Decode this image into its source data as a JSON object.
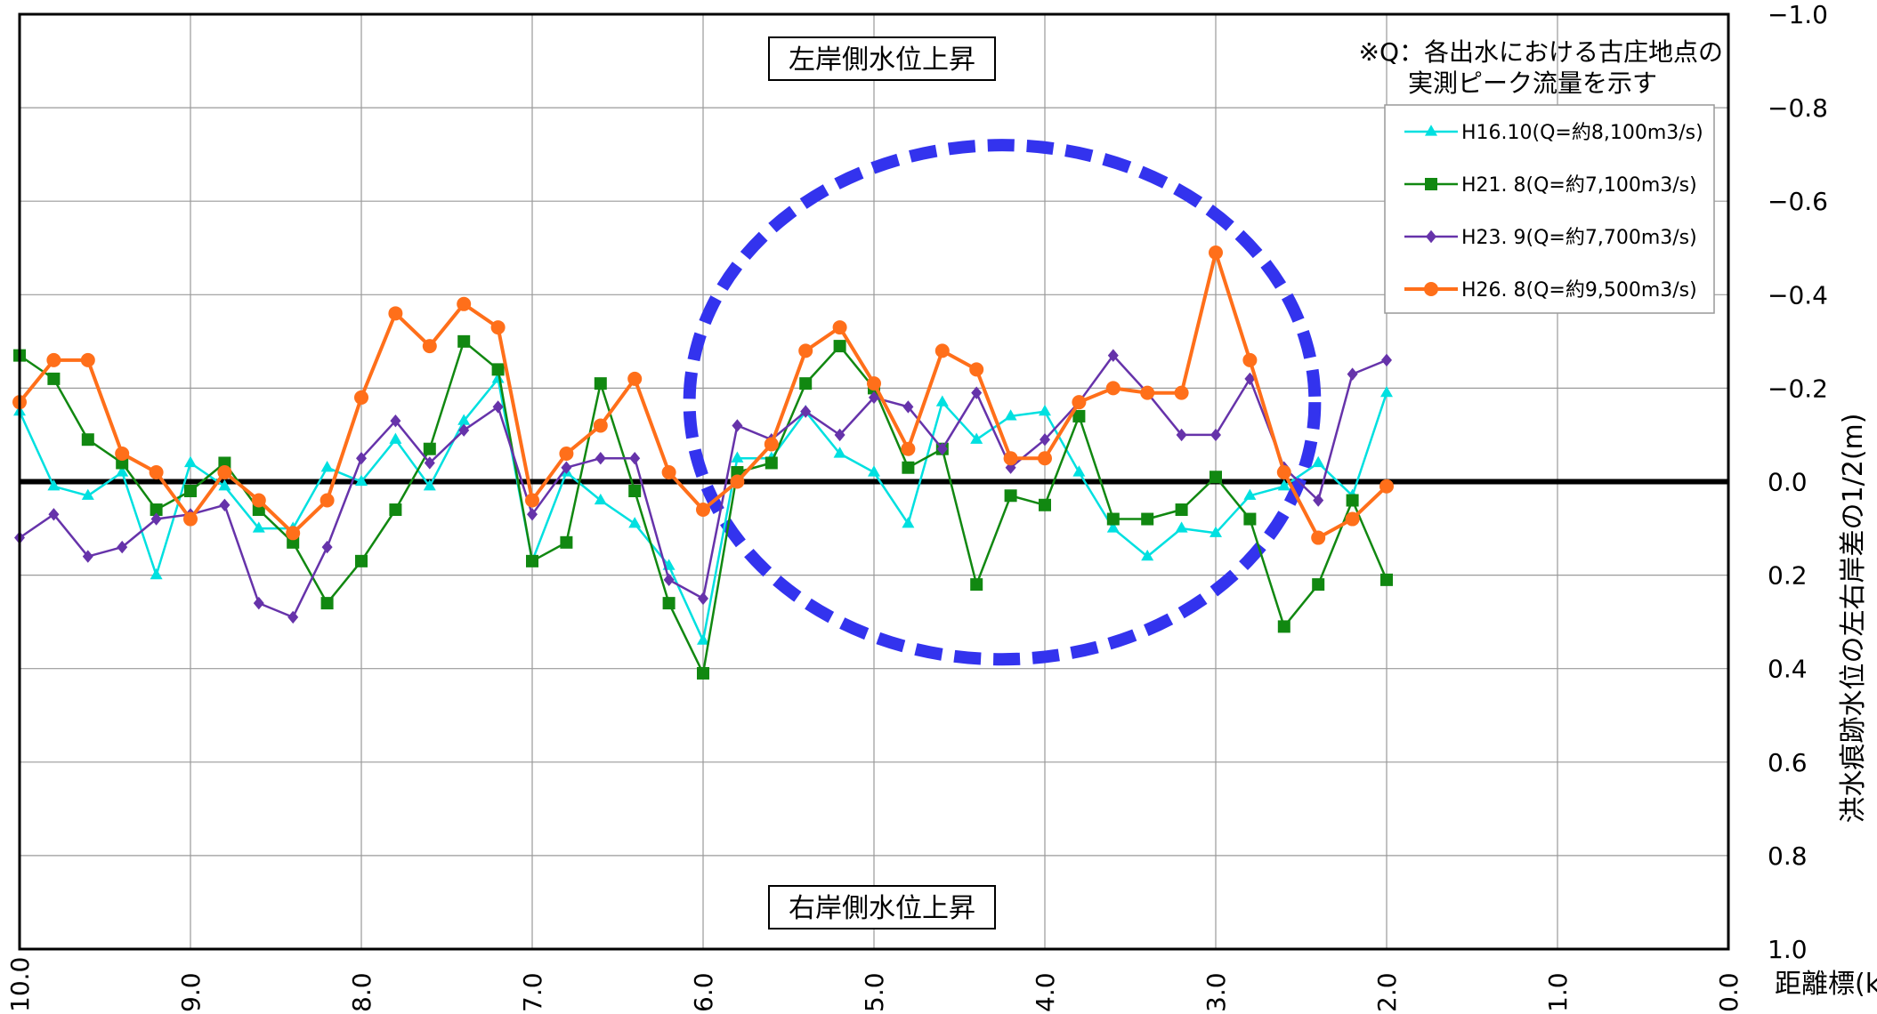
{
  "chart_data": {
    "type": "line",
    "x_tick_labels": [
      "10.0",
      "9.0",
      "8.0",
      "7.0",
      "6.0",
      "5.0",
      "4.0",
      "3.0",
      "2.0",
      "1.0",
      "0.0"
    ],
    "x_axis_label": "距離標(k)",
    "y_tick_labels": [
      "−1.0",
      "−0.8",
      "−0.6",
      "−0.4",
      "−0.2",
      "0.0",
      "0.2",
      "0.4",
      "0.6",
      "0.8",
      "1.0"
    ],
    "y_axis_label": "洪水痕跡水位の左右岸差の1/2(m)",
    "xlim": [
      10.0,
      0.0
    ],
    "ylim": [
      -1.0,
      1.0
    ],
    "y_axis_position": "right",
    "grid": true,
    "zero_line": true,
    "annotation_top": "左岸側水位上昇",
    "annotation_bottom": "右岸側水位上昇",
    "note_lines": [
      "※Q：各出水における古庄地点の",
      "実測ピーク流量を示す"
    ],
    "legend_position": "top-right",
    "highlight_ellipse": {
      "center_x_km": 4.25,
      "center_y": -0.17,
      "radius_x_km": 1.83,
      "radius_y": 0.55,
      "color": "#3333ee",
      "style": "dashed"
    },
    "x": [
      10.0,
      9.8,
      9.6,
      9.4,
      9.2,
      9.0,
      8.8,
      8.6,
      8.4,
      8.2,
      8.0,
      7.8,
      7.6,
      7.4,
      7.2,
      7.0,
      6.8,
      6.6,
      6.4,
      6.2,
      6.0,
      5.8,
      5.6,
      5.4,
      5.2,
      5.0,
      4.8,
      4.6,
      4.4,
      4.2,
      4.0,
      3.8,
      3.6,
      3.4,
      3.2,
      3.0,
      2.8,
      2.6,
      2.4,
      2.2,
      2.0
    ],
    "series": [
      {
        "name": "H16.10(Q=約8,100m3/s)",
        "color": "#00e0e0",
        "marker": "triangle",
        "values": [
          -0.15,
          0.01,
          0.03,
          -0.02,
          0.2,
          -0.04,
          0.01,
          0.1,
          0.1,
          -0.03,
          0.0,
          -0.09,
          0.01,
          -0.13,
          -0.22,
          0.17,
          -0.02,
          0.04,
          0.09,
          0.18,
          0.34,
          -0.05,
          -0.05,
          -0.15,
          -0.06,
          -0.02,
          0.09,
          -0.17,
          -0.09,
          -0.14,
          -0.15,
          -0.02,
          0.1,
          0.16,
          0.1,
          0.11,
          0.03,
          0.01,
          -0.04,
          0.03,
          -0.19
        ]
      },
      {
        "name": "H21. 8(Q=約7,100m3/s)",
        "color": "#118811",
        "marker": "square",
        "values": [
          -0.27,
          -0.22,
          -0.09,
          -0.04,
          0.06,
          0.02,
          -0.04,
          0.06,
          0.13,
          0.26,
          0.17,
          0.06,
          -0.07,
          -0.3,
          -0.24,
          0.17,
          0.13,
          -0.21,
          0.02,
          0.26,
          0.41,
          -0.02,
          -0.04,
          -0.21,
          -0.29,
          -0.2,
          -0.03,
          -0.07,
          0.22,
          0.03,
          0.05,
          -0.14,
          0.08,
          0.08,
          0.06,
          -0.01,
          0.08,
          0.31,
          0.22,
          0.04,
          0.21
        ]
      },
      {
        "name": "H23. 9(Q=約7,700m3/s)",
        "color": "#6633aa",
        "marker": "diamond",
        "values": [
          0.12,
          0.07,
          0.16,
          0.14,
          0.08,
          0.07,
          0.05,
          0.26,
          0.29,
          0.14,
          -0.05,
          -0.13,
          -0.04,
          -0.11,
          -0.16,
          0.07,
          -0.03,
          -0.05,
          -0.05,
          0.21,
          0.25,
          -0.12,
          -0.09,
          -0.15,
          -0.1,
          -0.18,
          -0.16,
          -0.07,
          -0.19,
          -0.03,
          -0.09,
          -0.17,
          -0.27,
          -0.19,
          -0.1,
          -0.1,
          -0.22,
          -0.03,
          0.04,
          -0.23,
          -0.26
        ]
      },
      {
        "name": "H26. 8(Q=約9,500m3/s)",
        "color": "#ff6f1a",
        "marker": "circle",
        "values": [
          -0.17,
          -0.26,
          -0.26,
          -0.06,
          -0.02,
          0.08,
          -0.02,
          0.04,
          0.11,
          0.04,
          -0.18,
          -0.36,
          -0.29,
          -0.38,
          -0.33,
          0.04,
          -0.06,
          -0.12,
          -0.22,
          -0.02,
          0.06,
          0.0,
          -0.08,
          -0.28,
          -0.33,
          -0.21,
          -0.07,
          -0.28,
          -0.24,
          -0.05,
          -0.05,
          -0.17,
          -0.2,
          -0.19,
          -0.19,
          -0.49,
          -0.26,
          -0.02,
          0.12,
          0.08,
          0.01
        ]
      }
    ]
  }
}
